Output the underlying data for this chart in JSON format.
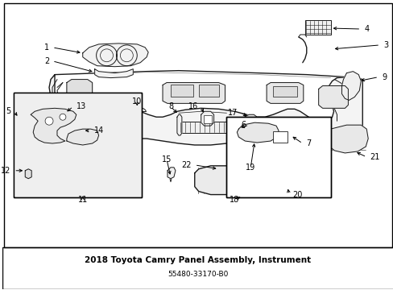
{
  "title": "2018 Toyota Camry Panel Assembly, Instrument",
  "part_number": "55480-33170-B0",
  "background_color": "#ffffff",
  "line_color": "#1a1a1a",
  "text_color": "#000000",
  "figsize": [
    4.89,
    3.6
  ],
  "dpi": 100,
  "title_fontsize": 7.5,
  "part_fontsize": 6.5,
  "label_fontsize": 7.0
}
